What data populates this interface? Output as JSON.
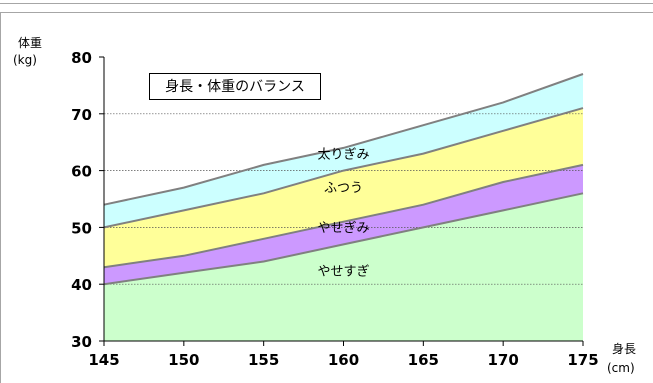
{
  "chart_data": {
    "type": "area",
    "title": "身長・体重のバランス",
    "xlabel": "身長",
    "xunit": "(cm)",
    "ylabel": "体重",
    "yunit": "(kg)",
    "xlim": [
      145,
      175
    ],
    "ylim": [
      30,
      80
    ],
    "x": [
      145,
      150,
      155,
      160,
      165,
      170,
      175
    ],
    "x_ticks": [
      145,
      150,
      155,
      160,
      165,
      170,
      175
    ],
    "y_ticks": [
      30,
      40,
      50,
      60,
      70,
      80
    ],
    "gridlines": [
      40,
      50,
      60,
      70
    ],
    "boundaries": {
      "lower": [
        40,
        42,
        44,
        47,
        50,
        53,
        56
      ],
      "middle": [
        43,
        45,
        48,
        51,
        54,
        58,
        61
      ],
      "upper": [
        50,
        53,
        56,
        60,
        63,
        67,
        71
      ],
      "top": [
        54,
        57,
        61,
        64,
        68,
        72,
        77
      ]
    },
    "bands": [
      {
        "name": "やせすぎ",
        "color": "#ccffcc",
        "label_x": 160,
        "label_y": 41.5
      },
      {
        "name": "やせぎみ",
        "color": "#cc99ff",
        "label_x": 160,
        "label_y": 49.2
      },
      {
        "name": "ふつう",
        "color": "#ffff99",
        "label_x": 160,
        "label_y": 56.2
      },
      {
        "name": "太りぎみ",
        "color": "#ccffff",
        "label_x": 160,
        "label_y": 62.1
      }
    ],
    "line_color": "#808080",
    "grid": true
  }
}
